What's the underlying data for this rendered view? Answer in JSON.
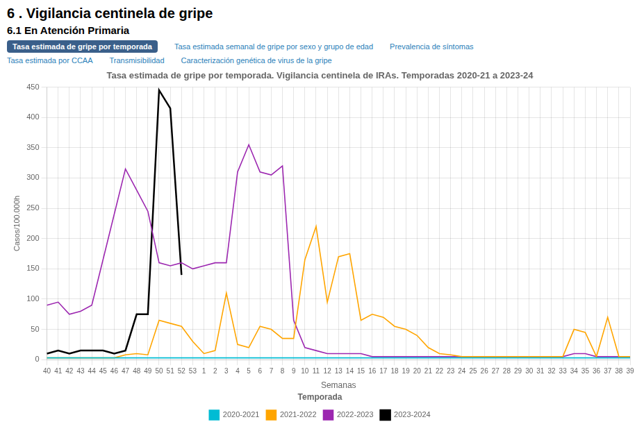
{
  "chart_data": {
    "type": "line",
    "title": "Tasa estimada de gripe por temporada. Vigilancia centinela de IRAs. Temporadas 2020-21 a 2023-24",
    "annotations": [
      "6 . Vigilancia centinela de gripe",
      "6.1 En Atención Primaria",
      "Tasa estimada de gripe por temporada",
      "Tasa estimada semanal de gripe por sexo y grupo de edad",
      "Prevalencia de síntomas",
      "Tasa estimada por CCAA",
      "Transmisibilidad",
      "Caracterización genética de virus de la gripe"
    ],
    "x_label": "Semanas",
    "y_label": "Casos/100.000h",
    "legend_title": "Temporada",
    "legend": "bottom",
    "grid": true,
    "ylim": [
      0,
      450
    ],
    "yticks": [
      0,
      50,
      100,
      150,
      200,
      250,
      300,
      350,
      400,
      450
    ],
    "categories": [
      "40",
      "41",
      "42",
      "43",
      "44",
      "45",
      "46",
      "47",
      "48",
      "49",
      "50",
      "51",
      "52",
      "53",
      "1",
      "2",
      "3",
      "4",
      "5",
      "6",
      "7",
      "8",
      "9",
      "10",
      "11",
      "12",
      "13",
      "14",
      "15",
      "16",
      "17",
      "18",
      "19",
      "20",
      "21",
      "22",
      "23",
      "24",
      "25",
      "26",
      "27",
      "28",
      "29",
      "30",
      "31",
      "32",
      "33",
      "34",
      "35",
      "36",
      "37",
      "38",
      "39"
    ],
    "series": [
      {
        "name": "2020-2021",
        "color": "#00BCD4",
        "values": [
          3,
          3,
          3,
          3,
          3,
          3,
          3,
          3,
          3,
          3,
          3,
          3,
          3,
          3,
          3,
          3,
          3,
          3,
          3,
          3,
          3,
          3,
          3,
          3,
          3,
          3,
          3,
          3,
          3,
          3,
          3,
          3,
          3,
          3,
          3,
          3,
          3,
          3,
          3,
          3,
          3,
          3,
          3,
          3,
          3,
          3,
          3,
          3,
          3,
          3,
          3,
          3,
          3
        ]
      },
      {
        "name": "2021-2022",
        "color": "#FFA500",
        "values": [
          3,
          3,
          3,
          3,
          3,
          3,
          3,
          8,
          10,
          8,
          65,
          60,
          55,
          30,
          10,
          15,
          110,
          25,
          20,
          55,
          50,
          35,
          35,
          165,
          220,
          95,
          170,
          175,
          65,
          75,
          70,
          55,
          50,
          40,
          20,
          10,
          8,
          5,
          5,
          5,
          5,
          5,
          5,
          5,
          5,
          5,
          5,
          50,
          45,
          5,
          70,
          5,
          5
        ]
      },
      {
        "name": "2022-2023",
        "color": "#9C27B0",
        "values": [
          90,
          95,
          75,
          80,
          90,
          165,
          240,
          315,
          280,
          245,
          160,
          155,
          160,
          150,
          155,
          160,
          160,
          310,
          355,
          310,
          305,
          320,
          65,
          20,
          15,
          10,
          10,
          10,
          10,
          5,
          5,
          5,
          5,
          5,
          5,
          5,
          5,
          5,
          5,
          5,
          5,
          5,
          5,
          5,
          5,
          5,
          5,
          10,
          10,
          5,
          5,
          5,
          5
        ]
      },
      {
        "name": "2023-2024",
        "color": "#000000",
        "values": [
          10,
          15,
          10,
          15,
          15,
          15,
          10,
          15,
          75,
          75,
          445,
          415,
          140,
          null,
          null,
          null,
          null,
          null,
          null,
          null,
          null,
          null,
          null,
          null,
          null,
          null,
          null,
          null,
          null,
          null,
          null,
          null,
          null,
          null,
          null,
          null,
          null,
          null,
          null,
          null,
          null,
          null,
          null,
          null,
          null,
          null,
          null,
          null,
          null,
          null,
          null,
          null,
          null
        ]
      }
    ]
  }
}
